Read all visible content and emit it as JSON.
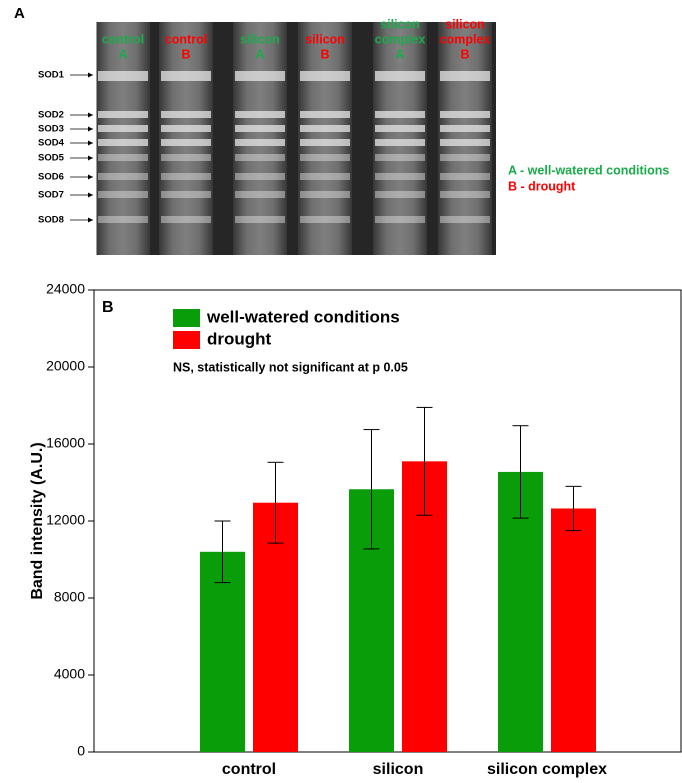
{
  "panel_a": {
    "label": "A",
    "lanes": [
      {
        "lines": [
          "control",
          "A"
        ],
        "color": "#1aab4b"
      },
      {
        "lines": [
          "control",
          "B"
        ],
        "color": "#ff0000"
      },
      {
        "lines": [
          "silicon",
          "A"
        ],
        "color": "#1aab4b"
      },
      {
        "lines": [
          "silicon",
          "B"
        ],
        "color": "#ff0000"
      },
      {
        "lines": [
          "silicon",
          "complex",
          "A"
        ],
        "color": "#1aab4b"
      },
      {
        "lines": [
          "silicon",
          "complex",
          "B"
        ],
        "color": "#ff0000"
      }
    ],
    "bands": [
      "SOD1",
      "SOD2",
      "SOD3",
      "SOD4",
      "SOD5",
      "SOD6",
      "SOD7",
      "SOD8"
    ],
    "legend": [
      {
        "text": "A - well-watered conditions",
        "color": "#1aab4b"
      },
      {
        "text": "B - drought",
        "color": "#ff0000"
      }
    ]
  },
  "chart_data": {
    "type": "bar",
    "panel_label": "B",
    "y_label": "Band intensity (A.U.)",
    "annotation": "NS, statistically not significant at p 0.05",
    "categories": [
      "control",
      "silicon",
      "silicon complex"
    ],
    "series": [
      {
        "name": "well-watered conditions",
        "color": "#0a9d0a",
        "values": [
          10400,
          13650,
          14550
        ],
        "errors": [
          1600,
          3100,
          2400
        ]
      },
      {
        "name": "drought",
        "color": "#ff0000",
        "values": [
          12950,
          15100,
          12650
        ],
        "errors": [
          2100,
          2800,
          1150
        ]
      }
    ],
    "ylim": [
      0,
      24000
    ],
    "yticks": [
      0,
      4000,
      8000,
      12000,
      16000,
      20000,
      24000
    ]
  }
}
